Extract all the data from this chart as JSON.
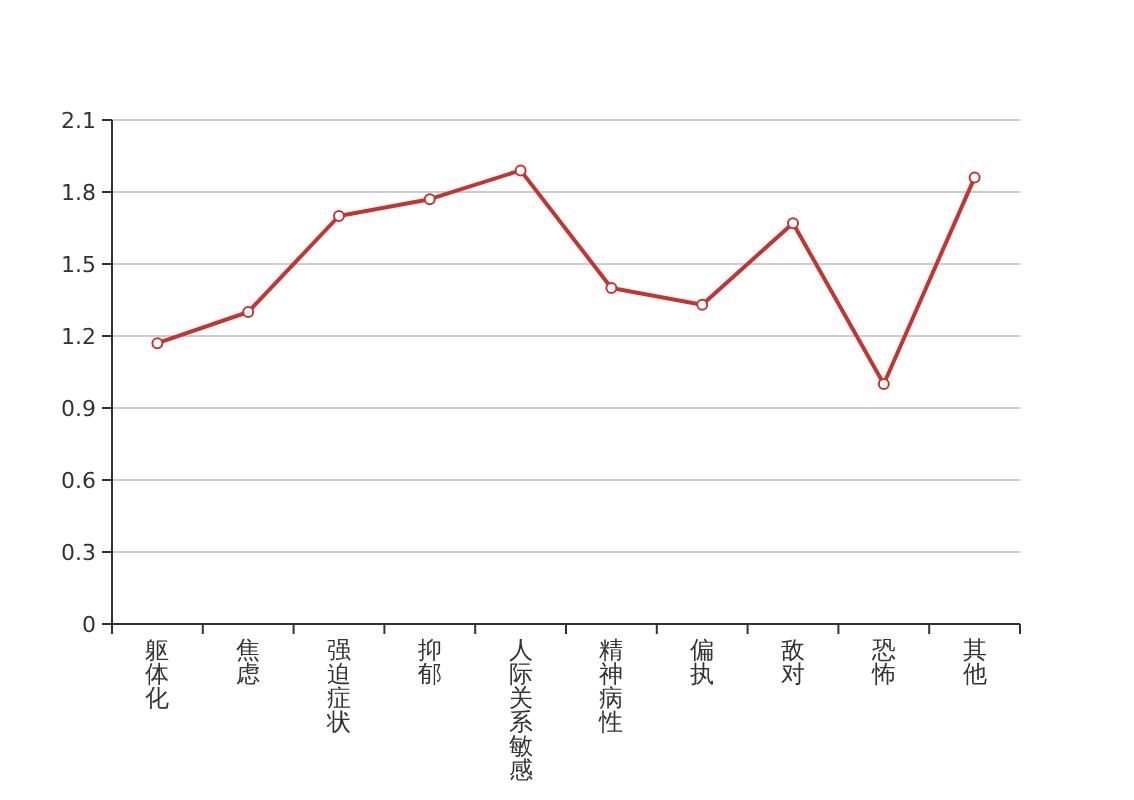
{
  "chart_data": {
    "type": "line",
    "categories": [
      "躯体化",
      "焦虑",
      "强迫症状",
      "抑郁",
      "人际关系敏感",
      "精神病性",
      "偏执",
      "敌对",
      "恐怖",
      "其他"
    ],
    "series": [
      {
        "color": "#c23531",
        "values": [
          1.17,
          1.3,
          1.7,
          1.77,
          1.89,
          1.4,
          1.33,
          1.67,
          1.0,
          1.86
        ]
      }
    ],
    "ylim": [
      0,
      2.1
    ],
    "yticks": [
      0,
      0.3,
      0.6,
      0.9,
      1.2,
      1.5,
      1.8,
      2.1
    ],
    "grid": "y",
    "marker": "circle",
    "line_style": "solid"
  }
}
